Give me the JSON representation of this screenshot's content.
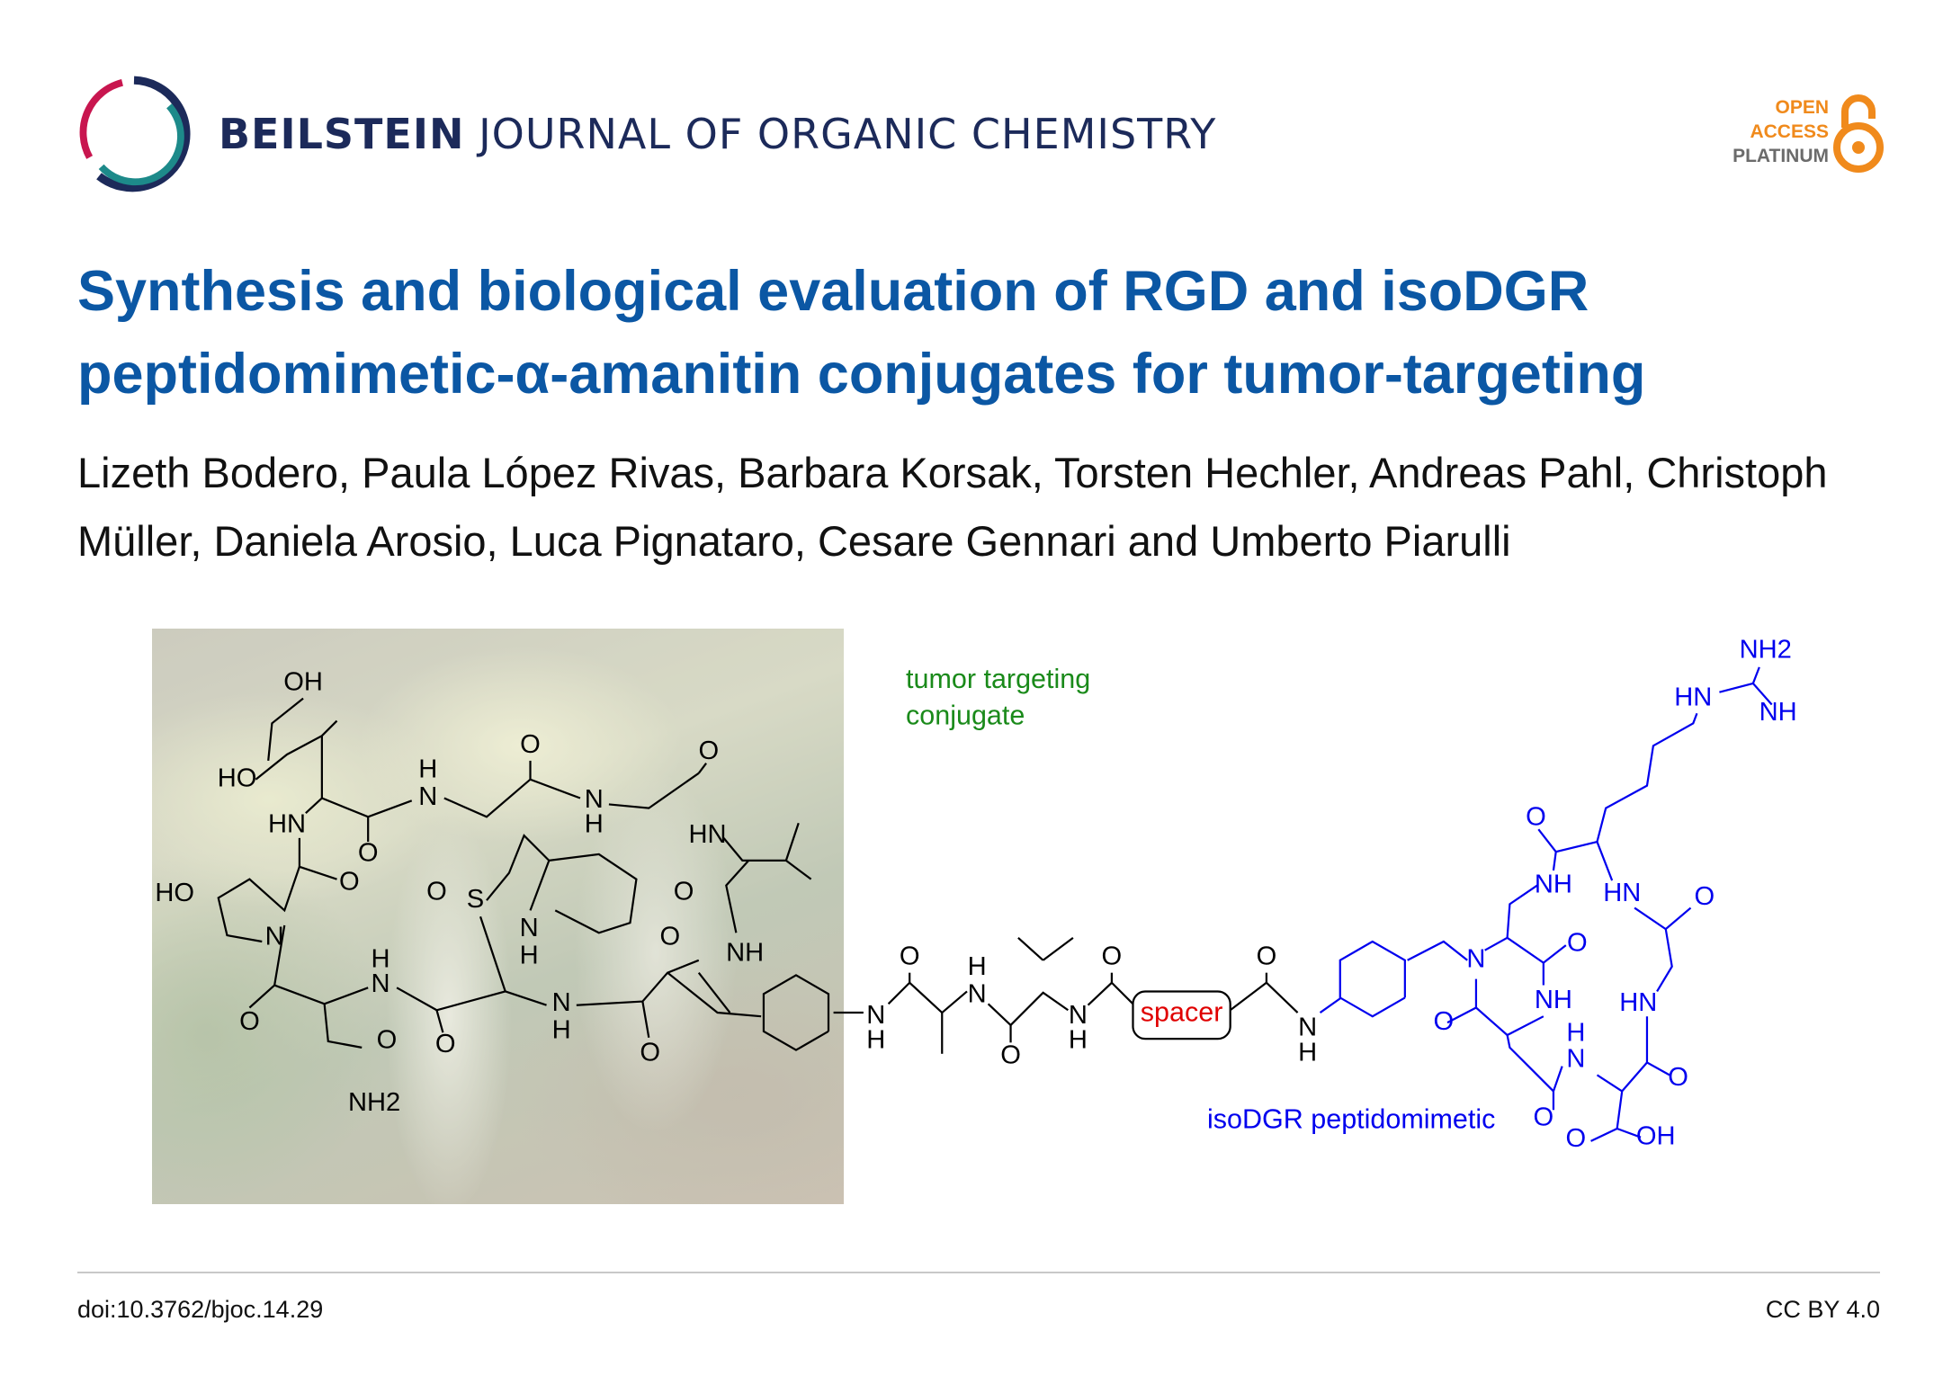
{
  "header": {
    "journal_bold": "BEILSTEIN",
    "journal_rest": "JOURNAL OF ORGANIC CHEMISTRY",
    "badge": {
      "line1": "OPEN",
      "line2": "ACCESS",
      "line3": "PLATINUM",
      "icon": "open-access-lock-icon"
    }
  },
  "article": {
    "title": "Synthesis and biological evaluation of RGD and isoDGR peptidomimetic-α-amanitin conjugates for tumor-targeting",
    "authors": "Lizeth Bodero, Paula López Rivas, Barbara Korsak, Torsten Hechler, Andreas Pahl, Christoph Müller, Daniela Arosio, Luca Pignataro, Cesare Gennari and Umberto Piarulli"
  },
  "graphic": {
    "label_conjugate_line1": "tumor targeting",
    "label_conjugate_line2": "conjugate",
    "spacer": "spacer",
    "label_isodgr": "isoDGR peptidomimetic",
    "amanitin_atoms": [
      "OH",
      "HO",
      "HN",
      "O",
      "H",
      "N",
      "O",
      "N",
      "H",
      "O",
      "HN",
      "O",
      "HO",
      "N",
      "O",
      "S",
      "N",
      "H",
      "O",
      "NH",
      "O",
      "H",
      "N",
      "O",
      "O",
      "N",
      "H",
      "O",
      "O",
      "NH2"
    ],
    "linker_atoms": [
      "N",
      "H",
      "O",
      "H",
      "N",
      "O",
      "O",
      "N",
      "H",
      "O",
      "N",
      "H"
    ],
    "isodgr_atoms": [
      "NH2",
      "HN",
      "NH",
      "O",
      "NH",
      "HN",
      "O",
      "N",
      "O",
      "NH",
      "O",
      "HN",
      "H",
      "N",
      "O",
      "O",
      "O",
      "OH"
    ],
    "colors": {
      "conjugate": "#1a8a1a",
      "spacer": "#e00000",
      "isodgr": "#0000ee",
      "amanitin": "#000000"
    }
  },
  "footer": {
    "doi": "doi:10.3762/bjoc.14.29",
    "license": "CC BY 4.0"
  }
}
